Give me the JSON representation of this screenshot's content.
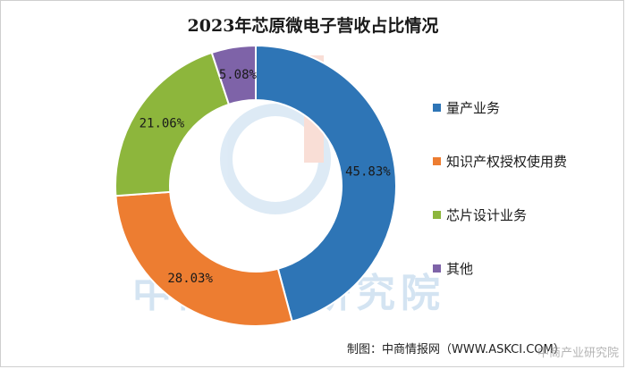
{
  "chart_data": {
    "type": "pie",
    "donut": true,
    "title": "2023年芯原微电子营收占比情况",
    "categories": [
      "量产业务",
      "知识产权授权使用费",
      "芯片设计业务",
      "其他"
    ],
    "values": [
      45.83,
      28.03,
      21.06,
      5.08
    ],
    "value_labels": [
      "45.83%",
      "28.03%",
      "21.06%",
      "5.08%"
    ],
    "colors": [
      "#2E75B6",
      "#ED7D31",
      "#8DB63C",
      "#7E63A8"
    ],
    "legend_position": "right"
  },
  "watermark": "中商产业研究院",
  "source": "制图：中商情报网（WWW.ASKCI.COM）",
  "corner_watermark": "中商产业研究院"
}
